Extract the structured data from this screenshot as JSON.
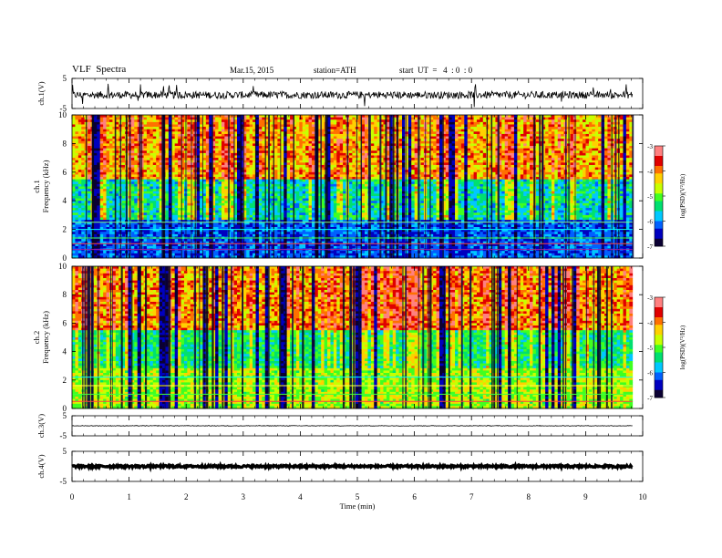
{
  "header": {
    "title": "VLF  Spectra",
    "date": "Mar.15, 2015",
    "station": "station=ATH",
    "start_time": "start  UT  =   4  : 0  : 0"
  },
  "colors": {
    "axis": "#000000",
    "colormap": [
      "#0b0033",
      "#0000c0",
      "#0060ff",
      "#00c8ff",
      "#00e070",
      "#40ff20",
      "#c8ff00",
      "#ffd000",
      "#ff7000",
      "#e00000",
      "#ff8080",
      "#ffffff"
    ]
  },
  "chart_data": [
    {
      "type": "line",
      "panel": "ch1-waveform",
      "ylabel": "ch.1(V)",
      "ylim": [
        -5,
        5
      ],
      "y_ticks": [
        "5",
        "-5"
      ],
      "baseline": -0.5,
      "noise_amplitude": 1.2
    },
    {
      "type": "heatmap",
      "panel": "ch1-spectrogram",
      "ylabel": "ch.1\nFrequency (kHz)",
      "ylim": [
        0,
        10
      ],
      "y_ticks": [
        "0",
        "2",
        "4",
        "6",
        "8",
        "10"
      ],
      "colorbar_label": "log(PSD)(V²/Hz)",
      "colorbar_ticks": [
        "-3",
        "-4",
        "-5",
        "-6",
        "-7"
      ],
      "colorbar_range": [
        -7,
        -3
      ]
    },
    {
      "type": "heatmap",
      "panel": "ch2-spectrogram",
      "ylabel": "ch.2\nFrequency (kHz)",
      "ylim": [
        0,
        10
      ],
      "y_ticks": [
        "0",
        "2",
        "4",
        "6",
        "8",
        "10"
      ],
      "colorbar_label": "log(PSD)(V²/Hz)",
      "colorbar_ticks": [
        "-3",
        "-4",
        "-5",
        "-6",
        "-7"
      ],
      "colorbar_range": [
        -7,
        -3
      ]
    },
    {
      "type": "line",
      "panel": "ch3-waveform",
      "ylabel": "ch.3(V)",
      "ylim": [
        -5,
        5
      ],
      "y_ticks": [
        "5",
        "-5"
      ],
      "baseline": 0,
      "noise_amplitude": 0.15
    },
    {
      "type": "line",
      "panel": "ch4-waveform",
      "ylabel": "ch.4(V)",
      "ylim": [
        -5,
        5
      ],
      "y_ticks": [
        "5",
        "-5"
      ],
      "baseline": 0,
      "noise_amplitude": 0.35
    }
  ],
  "x_axis": {
    "label": "Time  (min)",
    "xlim": [
      0,
      10
    ],
    "data_end": 9.82,
    "ticks": [
      "0",
      "1",
      "2",
      "3",
      "4",
      "5",
      "6",
      "7",
      "8",
      "9",
      "10"
    ]
  }
}
